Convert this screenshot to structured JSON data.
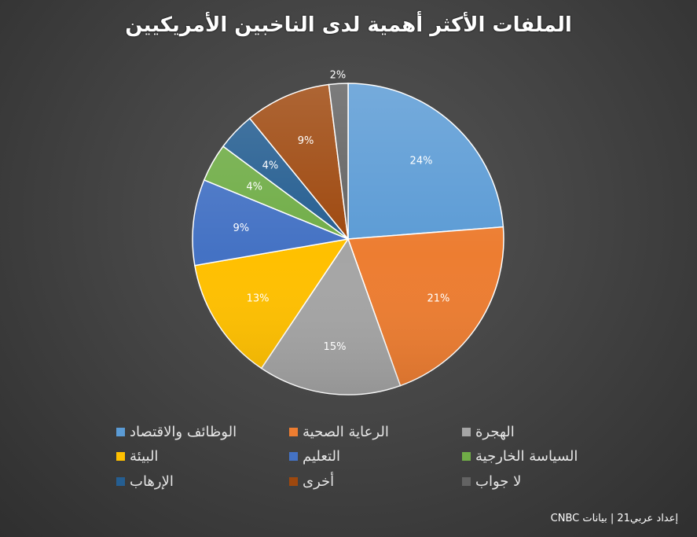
{
  "chart_data": {
    "type": "pie",
    "title": "الملفات الأكثر أهمية لدى الناخبين الأمريكيين",
    "categories": [
      "الوظائف والاقتصاد",
      "الرعاية الصحية",
      "الهجرة",
      "البيئة",
      "التعليم",
      "السياسة الخارجية",
      "الإرهاب",
      "أخرى",
      "لا جواب"
    ],
    "values": [
      24,
      21,
      15,
      13,
      9,
      4,
      4,
      9,
      2
    ],
    "labels": [
      "24%",
      "21%",
      "15%",
      "13%",
      "9%",
      "4%",
      "4%",
      "9%",
      "2%"
    ],
    "colors": [
      "#5b9bd5",
      "#ed7d31",
      "#a5a5a5",
      "#ffc000",
      "#4472c4",
      "#70ad47",
      "#255e91",
      "#9e480e",
      "#636363"
    ],
    "legend": "bottom"
  },
  "footer": {
    "source": "إعداد عربي21 | بيانات CNBC"
  }
}
